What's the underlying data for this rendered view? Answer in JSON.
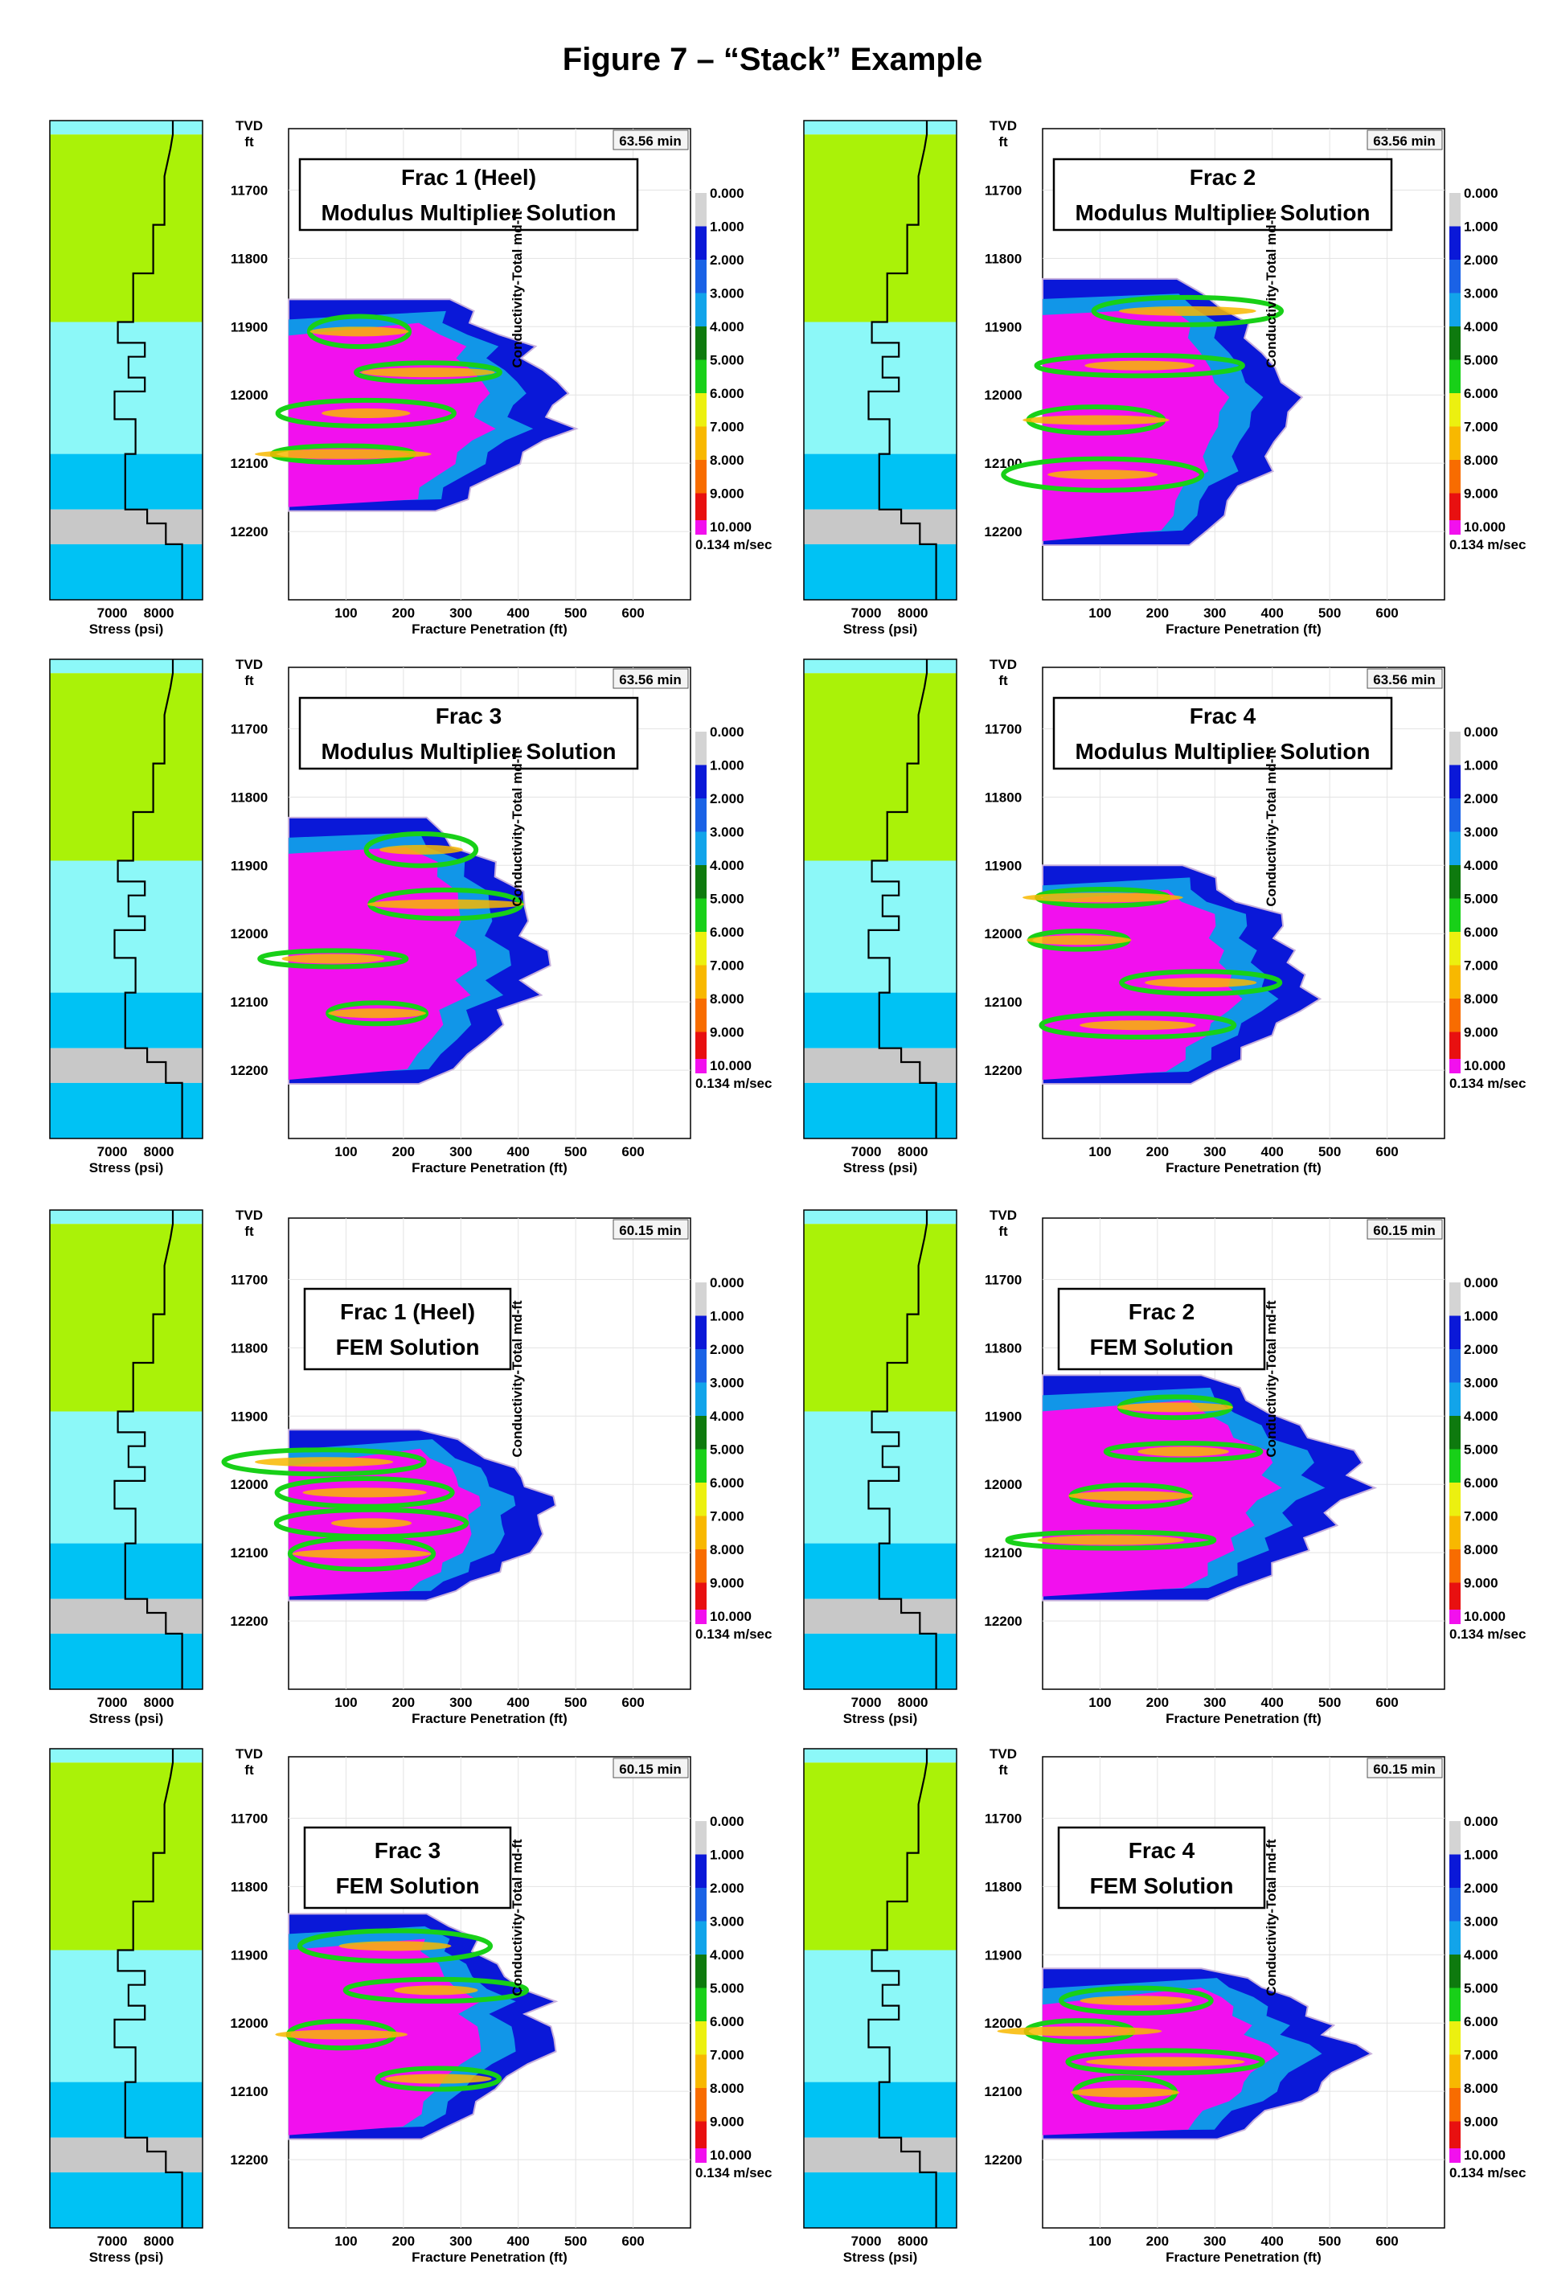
{
  "figure": {
    "title": "Figure 7 – “Stack” Example"
  },
  "common": {
    "tvd_label": "TVD",
    "tvd_unit": "ft",
    "depth_ticks": [
      "11700",
      "11800",
      "11900",
      "12000",
      "12100",
      "12200"
    ],
    "stress_ticks": [
      "7000",
      "8000"
    ],
    "stress_label": "Stress (psi)",
    "x_ticks": [
      "100",
      "200",
      "300",
      "400",
      "500",
      "600"
    ],
    "x_label": "Fracture Penetration (ft)",
    "y_label": "Conductivity-Total md-ft",
    "legend_values": [
      "0.000",
      "1.000",
      "2.000",
      "3.000",
      "4.000",
      "5.000",
      "6.000",
      "7.000",
      "8.000",
      "9.000",
      "10.000"
    ],
    "legend_unit": "0.134 m/sec",
    "legend_colors": [
      "#d4d4d4",
      "#0a18d8",
      "#1a62e6",
      "#12a4ea",
      "#0e7a0e",
      "#18d018",
      "#ecf010",
      "#f8b800",
      "#f86c00",
      "#e81010",
      "#f210ee"
    ],
    "zone_colors": [
      "#8cf8f8",
      "#aaf208",
      "#8cf8f8",
      "#00c2f4",
      "#c8c8c8",
      "#00c2f4"
    ]
  },
  "chart_data": [
    {
      "type": "heatmap",
      "title": "Frac 1 (Heel)",
      "subtitle": "Modulus Multiplier Solution",
      "time": "63.56 min",
      "xlim": [
        0,
        700
      ],
      "ylim": [
        12300,
        11610
      ],
      "colorbar_range": [
        0,
        10
      ]
    },
    {
      "type": "heatmap",
      "title": "Frac 2",
      "subtitle": "Modulus Multiplier Solution",
      "time": "63.56 min",
      "xlim": [
        0,
        700
      ],
      "ylim": [
        12300,
        11610
      ],
      "colorbar_range": [
        0,
        10
      ]
    },
    {
      "type": "heatmap",
      "title": "Frac 3",
      "subtitle": "Modulus Multiplier Solution",
      "time": "63.56 min",
      "xlim": [
        0,
        700
      ],
      "ylim": [
        12300,
        11610
      ],
      "colorbar_range": [
        0,
        10
      ]
    },
    {
      "type": "heatmap",
      "title": "Frac 4",
      "subtitle": "Modulus Multiplier Solution",
      "time": "63.56 min",
      "xlim": [
        0,
        700
      ],
      "ylim": [
        12300,
        11610
      ],
      "colorbar_range": [
        0,
        10
      ]
    },
    {
      "type": "heatmap",
      "title": "Frac 1 (Heel)",
      "subtitle": "FEM Solution",
      "time": "60.15 min",
      "xlim": [
        0,
        700
      ],
      "ylim": [
        12300,
        11610
      ],
      "colorbar_range": [
        0,
        10
      ]
    },
    {
      "type": "heatmap",
      "title": "Frac 2",
      "subtitle": "FEM Solution",
      "time": "60.15 min",
      "xlim": [
        0,
        700
      ],
      "ylim": [
        12300,
        11610
      ],
      "colorbar_range": [
        0,
        10
      ]
    },
    {
      "type": "heatmap",
      "title": "Frac 3",
      "subtitle": "FEM Solution",
      "time": "60.15 min",
      "xlim": [
        0,
        700
      ],
      "ylim": [
        12300,
        11610
      ],
      "colorbar_range": [
        0,
        10
      ]
    },
    {
      "type": "heatmap",
      "title": "Frac 4",
      "subtitle": "FEM Solution",
      "time": "60.15 min",
      "xlim": [
        0,
        700
      ],
      "ylim": [
        12300,
        11610
      ],
      "colorbar_range": [
        0,
        10
      ]
    }
  ]
}
